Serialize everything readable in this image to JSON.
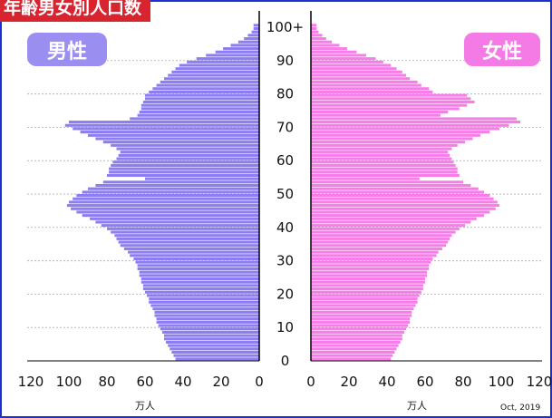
{
  "title": "年齢男女別人口数",
  "male_label": "男性",
  "female_label": "女性",
  "note": "Oct, 2019",
  "colors": {
    "male": "#8d7df2",
    "female": "#f77de8",
    "accent": "#d8242f",
    "frame": "#1a2fd6"
  },
  "chart_data": {
    "type": "population-pyramid",
    "title": "年齢男女別人口数",
    "unit": "万人",
    "x_ticks_left": [
      "120",
      "100",
      "80",
      "60",
      "40",
      "20",
      "0"
    ],
    "x_ticks_right": [
      "0",
      "20",
      "40",
      "60",
      "80",
      "100",
      "120"
    ],
    "xlim": [
      0,
      120
    ],
    "y_ticks": [
      "0",
      "10",
      "20",
      "30",
      "40",
      "50",
      "60",
      "70",
      "80",
      "90",
      "100+"
    ],
    "ylim": [
      0,
      100
    ],
    "ages": [
      0,
      1,
      2,
      3,
      4,
      5,
      6,
      7,
      8,
      9,
      10,
      11,
      12,
      13,
      14,
      15,
      16,
      17,
      18,
      19,
      20,
      21,
      22,
      23,
      24,
      25,
      26,
      27,
      28,
      29,
      30,
      31,
      32,
      33,
      34,
      35,
      36,
      37,
      38,
      39,
      40,
      41,
      42,
      43,
      44,
      45,
      46,
      47,
      48,
      49,
      50,
      51,
      52,
      53,
      54,
      55,
      56,
      57,
      58,
      59,
      60,
      61,
      62,
      63,
      64,
      65,
      66,
      67,
      68,
      69,
      70,
      71,
      72,
      73,
      74,
      75,
      76,
      77,
      78,
      79,
      80,
      81,
      82,
      83,
      84,
      85,
      86,
      87,
      88,
      89,
      90,
      91,
      92,
      93,
      94,
      95,
      96,
      97,
      98,
      99,
      100
    ],
    "series": [
      {
        "name": "男性",
        "values": [
          44,
          45,
          46,
          47,
          48,
          49,
          50,
          50,
          51,
          52,
          53,
          54,
          54,
          55,
          55,
          56,
          57,
          58,
          58,
          59,
          60,
          61,
          61,
          62,
          62,
          63,
          63,
          64,
          64,
          65,
          66,
          68,
          69,
          71,
          73,
          74,
          75,
          76,
          78,
          80,
          83,
          86,
          89,
          93,
          96,
          99,
          101,
          100,
          98,
          96,
          93,
          90,
          86,
          82,
          60,
          80,
          79,
          79,
          78,
          77,
          75,
          74,
          73,
          75,
          78,
          82,
          86,
          90,
          94,
          98,
          102,
          100,
          68,
          64,
          63,
          62,
          62,
          61,
          60,
          60,
          58,
          56,
          54,
          52,
          50,
          48,
          46,
          44,
          42,
          38,
          33,
          28,
          23,
          19,
          15,
          11,
          8,
          6,
          4,
          3,
          3
        ]
      },
      {
        "name": "女性",
        "values": [
          42,
          43,
          44,
          45,
          46,
          47,
          48,
          48,
          49,
          50,
          51,
          52,
          52,
          53,
          53,
          54,
          55,
          56,
          56,
          57,
          58,
          59,
          59,
          60,
          60,
          61,
          61,
          62,
          62,
          63,
          64,
          66,
          67,
          69,
          71,
          72,
          73,
          74,
          76,
          78,
          81,
          84,
          87,
          91,
          94,
          97,
          99,
          98,
          96,
          94,
          91,
          88,
          84,
          80,
          57,
          78,
          77,
          77,
          76,
          75,
          74,
          73,
          72,
          74,
          77,
          81,
          85,
          89,
          94,
          99,
          104,
          110,
          108,
          68,
          72,
          78,
          82,
          86,
          84,
          82,
          64,
          62,
          58,
          56,
          52,
          50,
          48,
          45,
          42,
          38,
          34,
          29,
          24,
          19,
          15,
          11,
          8,
          6,
          4,
          3,
          3
        ]
      }
    ]
  }
}
